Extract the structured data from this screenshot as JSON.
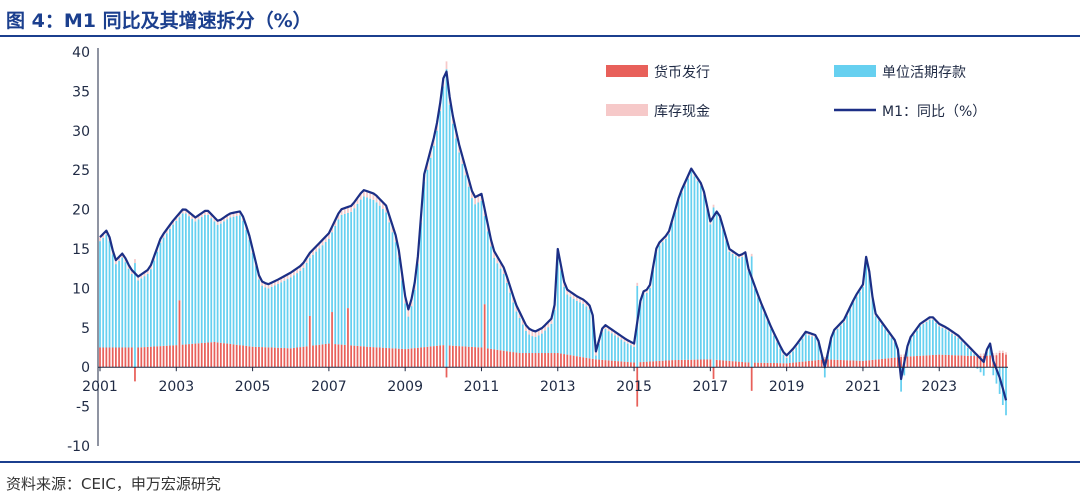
{
  "title": "图 4：M1 同比及其增速拆分（%）",
  "source": "资料来源：CEIC，申万宏源研究",
  "chart_data": {
    "type": "bar",
    "stacked": true,
    "x_tick_labels": [
      "2001",
      "2003",
      "2005",
      "2007",
      "2009",
      "2011",
      "2013",
      "2015",
      "2017",
      "2019",
      "2021",
      "2023"
    ],
    "y_tick_labels": [
      "40",
      "35",
      "30",
      "25",
      "20",
      "15",
      "10",
      "5",
      "0",
      "-5",
      "-10"
    ],
    "ylim": [
      -10,
      40
    ],
    "xlim": [
      2001.0,
      2024.75
    ],
    "legend_position": "top-right",
    "colors": {
      "currency": "#e8605a",
      "deposits": "#66d0f0",
      "cash": "#f6c9c9",
      "m1": "#1c2f86"
    },
    "series": [
      {
        "name": "货币发行",
        "type": "bar",
        "key": "currency"
      },
      {
        "name": "单位活期存款",
        "type": "bar",
        "key": "deposits"
      },
      {
        "name": "库存现金",
        "type": "bar",
        "key": "cash"
      },
      {
        "name": "M1：同比（%）",
        "type": "line",
        "key": "m1"
      }
    ],
    "m1_keypoints": [
      [
        2001.0,
        16.5
      ],
      [
        2001.2,
        17.5
      ],
      [
        2001.4,
        13.5
      ],
      [
        2001.6,
        14.5
      ],
      [
        2001.8,
        12.5
      ],
      [
        2002.0,
        11.5
      ],
      [
        2002.3,
        12.5
      ],
      [
        2002.6,
        16.5
      ],
      [
        2002.9,
        18.5
      ],
      [
        2003.2,
        20.2
      ],
      [
        2003.5,
        19.0
      ],
      [
        2003.8,
        20.0
      ],
      [
        2004.1,
        18.5
      ],
      [
        2004.4,
        19.5
      ],
      [
        2004.7,
        19.8
      ],
      [
        2004.9,
        17.0
      ],
      [
        2005.0,
        15.0
      ],
      [
        2005.2,
        11.0
      ],
      [
        2005.4,
        10.5
      ],
      [
        2005.7,
        11.2
      ],
      [
        2006.0,
        12.0
      ],
      [
        2006.3,
        13.0
      ],
      [
        2006.5,
        14.5
      ],
      [
        2006.8,
        16.0
      ],
      [
        2007.0,
        17.0
      ],
      [
        2007.3,
        20.0
      ],
      [
        2007.6,
        20.5
      ],
      [
        2007.9,
        22.5
      ],
      [
        2008.2,
        22.0
      ],
      [
        2008.5,
        20.5
      ],
      [
        2008.8,
        16.0
      ],
      [
        2009.0,
        9.0
      ],
      [
        2009.1,
        7.0
      ],
      [
        2009.3,
        12.0
      ],
      [
        2009.5,
        24.5
      ],
      [
        2009.8,
        30.0
      ],
      [
        2009.95,
        34.5
      ],
      [
        2010.05,
        38.8
      ],
      [
        2010.2,
        33.0
      ],
      [
        2010.4,
        28.5
      ],
      [
        2010.6,
        25.0
      ],
      [
        2010.8,
        21.5
      ],
      [
        2011.0,
        22.0
      ],
      [
        2011.3,
        15.0
      ],
      [
        2011.6,
        12.5
      ],
      [
        2011.9,
        8.0
      ],
      [
        2012.2,
        5.0
      ],
      [
        2012.4,
        4.5
      ],
      [
        2012.6,
        5.0
      ],
      [
        2012.9,
        6.5
      ],
      [
        2013.0,
        15.0
      ],
      [
        2013.2,
        10.0
      ],
      [
        2013.5,
        9.0
      ],
      [
        2013.7,
        8.5
      ],
      [
        2013.9,
        7.5
      ],
      [
        2014.0,
        2.0
      ],
      [
        2014.2,
        5.5
      ],
      [
        2014.5,
        4.5
      ],
      [
        2014.8,
        3.5
      ],
      [
        2015.0,
        3.0
      ],
      [
        2015.2,
        9.5
      ],
      [
        2015.4,
        10.0
      ],
      [
        2015.6,
        15.5
      ],
      [
        2015.9,
        17.0
      ],
      [
        2016.2,
        22.0
      ],
      [
        2016.5,
        25.2
      ],
      [
        2016.8,
        23.0
      ],
      [
        2017.0,
        18.5
      ],
      [
        2017.2,
        20.0
      ],
      [
        2017.5,
        15.0
      ],
      [
        2017.8,
        14.0
      ],
      [
        2017.9,
        15.0
      ],
      [
        2018.0,
        12.5
      ],
      [
        2018.3,
        8.5
      ],
      [
        2018.6,
        5.0
      ],
      [
        2018.9,
        2.0
      ],
      [
        2019.0,
        1.5
      ],
      [
        2019.2,
        2.5
      ],
      [
        2019.5,
        4.5
      ],
      [
        2019.8,
        4.0
      ],
      [
        2020.0,
        0.0
      ],
      [
        2020.2,
        4.5
      ],
      [
        2020.5,
        6.0
      ],
      [
        2020.8,
        9.0
      ],
      [
        2021.0,
        10.5
      ],
      [
        2021.1,
        14.7
      ],
      [
        2021.3,
        7.0
      ],
      [
        2021.6,
        5.0
      ],
      [
        2021.9,
        3.0
      ],
      [
        2022.0,
        -1.5
      ],
      [
        2022.2,
        3.5
      ],
      [
        2022.5,
        5.5
      ],
      [
        2022.8,
        6.5
      ],
      [
        2023.0,
        5.5
      ],
      [
        2023.2,
        5.0
      ],
      [
        2023.5,
        4.0
      ],
      [
        2023.8,
        2.5
      ],
      [
        2024.0,
        1.5
      ],
      [
        2024.2,
        0.5
      ],
      [
        2024.3,
        4.0
      ],
      [
        2024.4,
        1.0
      ],
      [
        2024.6,
        -1.5
      ],
      [
        2024.75,
        -4.2
      ]
    ],
    "currency_keypoints": [
      [
        2001.0,
        2.5
      ],
      [
        2002.0,
        2.5
      ],
      [
        2003.0,
        2.8
      ],
      [
        2004.0,
        3.2
      ],
      [
        2005.0,
        2.6
      ],
      [
        2006.0,
        2.4
      ],
      [
        2007.0,
        3.0
      ],
      [
        2008.0,
        2.6
      ],
      [
        2009.0,
        2.3
      ],
      [
        2010.0,
        2.8
      ],
      [
        2011.0,
        2.5
      ],
      [
        2012.0,
        1.8
      ],
      [
        2013.0,
        1.8
      ],
      [
        2014.0,
        1.0
      ],
      [
        2015.0,
        0.6
      ],
      [
        2016.0,
        0.9
      ],
      [
        2017.0,
        1.0
      ],
      [
        2018.0,
        0.6
      ],
      [
        2019.0,
        0.5
      ],
      [
        2020.0,
        1.0
      ],
      [
        2021.0,
        0.8
      ],
      [
        2022.0,
        1.3
      ],
      [
        2023.0,
        1.6
      ],
      [
        2024.0,
        1.4
      ],
      [
        2024.75,
        1.6
      ]
    ],
    "currency_spikes": [
      [
        2001.95,
        -1.8
      ],
      [
        2003.05,
        8.5
      ],
      [
        2006.5,
        6.5
      ],
      [
        2007.05,
        7.0
      ],
      [
        2007.5,
        7.5
      ],
      [
        2010.1,
        -1.3
      ],
      [
        2011.1,
        8.0
      ],
      [
        2015.1,
        -5.0
      ],
      [
        2017.1,
        -1.5
      ],
      [
        2018.05,
        -3.0
      ],
      [
        2024.55,
        1.8
      ],
      [
        2024.7,
        1.8
      ]
    ],
    "cash_keypoints": [
      [
        2001.0,
        0.5
      ],
      [
        2005.0,
        0.5
      ],
      [
        2010.0,
        1.0
      ],
      [
        2015.0,
        0.4
      ],
      [
        2020.0,
        0.3
      ],
      [
        2024.75,
        0.3
      ]
    ]
  }
}
